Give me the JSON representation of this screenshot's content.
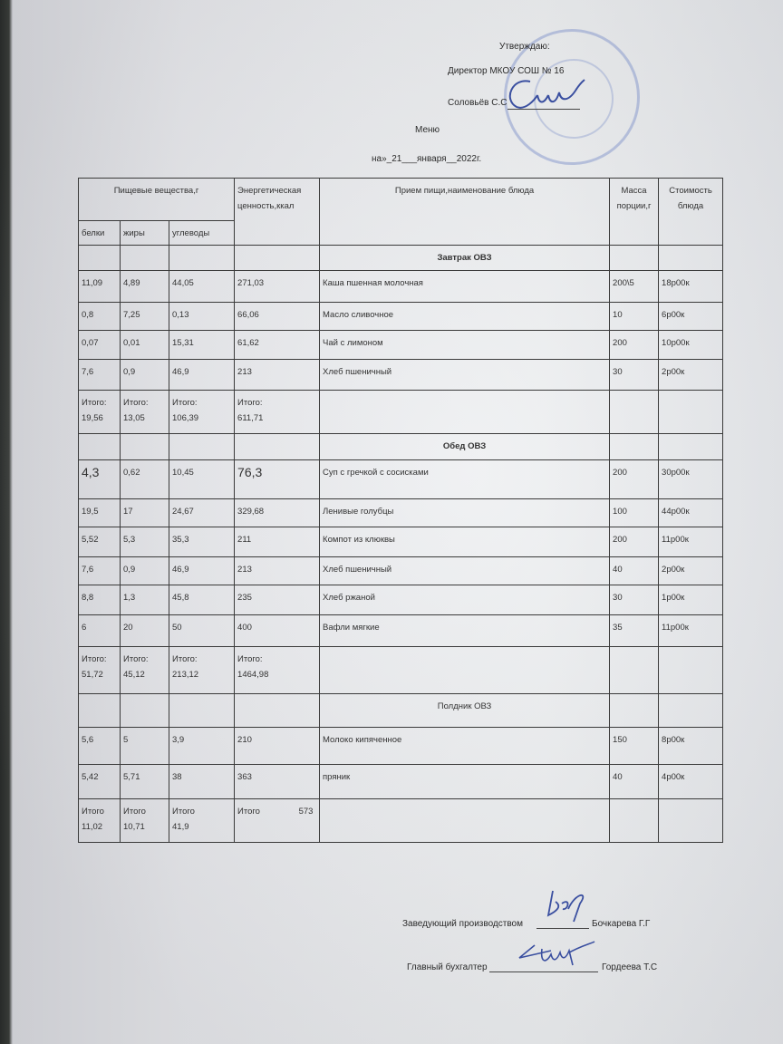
{
  "approval": {
    "approve": "Утверждаю:",
    "director": "Директор  МКОУ СОШ № 16",
    "director_name": "Соловьёв С.С",
    "title": "Меню",
    "date_line": "на»_21___января__2022г."
  },
  "table": {
    "headers": {
      "nutrients": "Пищевые вещества,г",
      "energy": "Энергетическая ценность,ккал",
      "dish": "Прием пищи,наименование блюда",
      "mass": "Масса порции,г",
      "cost": "Стоимость блюда",
      "proteins": "белки",
      "fats": "жиры",
      "carbs": "углеводы"
    },
    "sections": [
      {
        "title": "Завтрак ОВЗ",
        "rows": [
          {
            "proteins": "11,09",
            "fats": "4,89",
            "carbs": "44,05",
            "energy": "271,03",
            "dish": "Каша пшенная молочная",
            "mass": "200\\5",
            "cost": "18р00к"
          },
          {
            "proteins": "0,8",
            "fats": "7,25",
            "carbs": "0,13",
            "energy": "66,06",
            "dish": "Масло сливочное",
            "mass": "10",
            "cost": "6р00к"
          },
          {
            "proteins": "0,07",
            "fats": "0,01",
            "carbs": "15,31",
            "energy": "61,62",
            "dish": "Чай с лимоном",
            "mass": "200",
            "cost": "10р00к"
          },
          {
            "proteins": "7,6",
            "fats": "0,9",
            "carbs": "46,9",
            "energy": "213",
            "dish": "Хлеб пшеничный",
            "mass": "30",
            "cost": "2р00к"
          }
        ],
        "totals": {
          "proteins": "Итого: 19,56",
          "fats": "Итого: 13,05",
          "carbs": "Итого: 106,39",
          "energy": "Итого: 611,71"
        }
      },
      {
        "title": "Обед ОВЗ",
        "rows": [
          {
            "proteins": "4,3",
            "fats": "0,62",
            "carbs": "10,45",
            "energy": "76,3",
            "dish": "Суп с гречкой с сосисками",
            "mass": "200",
            "cost": "30р00к"
          },
          {
            "proteins": "19,5",
            "fats": "17",
            "carbs": "24,67",
            "energy": "329,68",
            "dish": "Ленивые голубцы",
            "mass": "100",
            "cost": "44р00к"
          },
          {
            "proteins": "5,52",
            "fats": "5,3",
            "carbs": "35,3",
            "energy": "211",
            "dish": "Компот из клюквы",
            "mass": "200",
            "cost": "11р00к"
          },
          {
            "proteins": "7,6",
            "fats": "0,9",
            "carbs": "46,9",
            "energy": "213",
            "dish": "Хлеб пшеничный",
            "mass": "40",
            "cost": "2р00к"
          },
          {
            "proteins": "8,8",
            "fats": "1,3",
            "carbs": "45,8",
            "energy": "235",
            "dish": "Хлеб ржаной",
            "mass": "30",
            "cost": "1р00к"
          },
          {
            "proteins": "6",
            "fats": "20",
            "carbs": "50",
            "energy": "400",
            "dish": "Вафли мягкие",
            "mass": "35",
            "cost": "11р00к"
          }
        ],
        "totals": {
          "proteins": "Итого: 51,72",
          "fats": "Итого: 45,12",
          "carbs": "Итого: 213,12",
          "energy": "Итого: 1464,98"
        }
      },
      {
        "title": "Полдник ОВЗ",
        "rows": [
          {
            "proteins": "5,6",
            "fats": "5",
            "carbs": "3,9",
            "energy": "210",
            "dish": "Молоко кипяченное",
            "mass": "150",
            "cost": "8р00к"
          },
          {
            "proteins": "5,42",
            "fats": "5,71",
            "carbs": "38",
            "energy": "363",
            "dish": "пряник",
            "mass": "40",
            "cost": "4р00к"
          }
        ],
        "totals": {
          "proteins": "Итого 11,02",
          "fats": "Итого 10,71",
          "carbs": "Итого 41,9",
          "energy": "Итого 573"
        }
      }
    ]
  },
  "signatures": {
    "production_head_label": "Заведующий производством",
    "production_head_name": "Бочкарева Г.Г",
    "chief_accountant_label": "Главный бухгалтер",
    "chief_accountant_name": "Гордеева Т.С"
  },
  "colors": {
    "stamp": "#7f90c8",
    "ink": "#3a4fa0"
  }
}
